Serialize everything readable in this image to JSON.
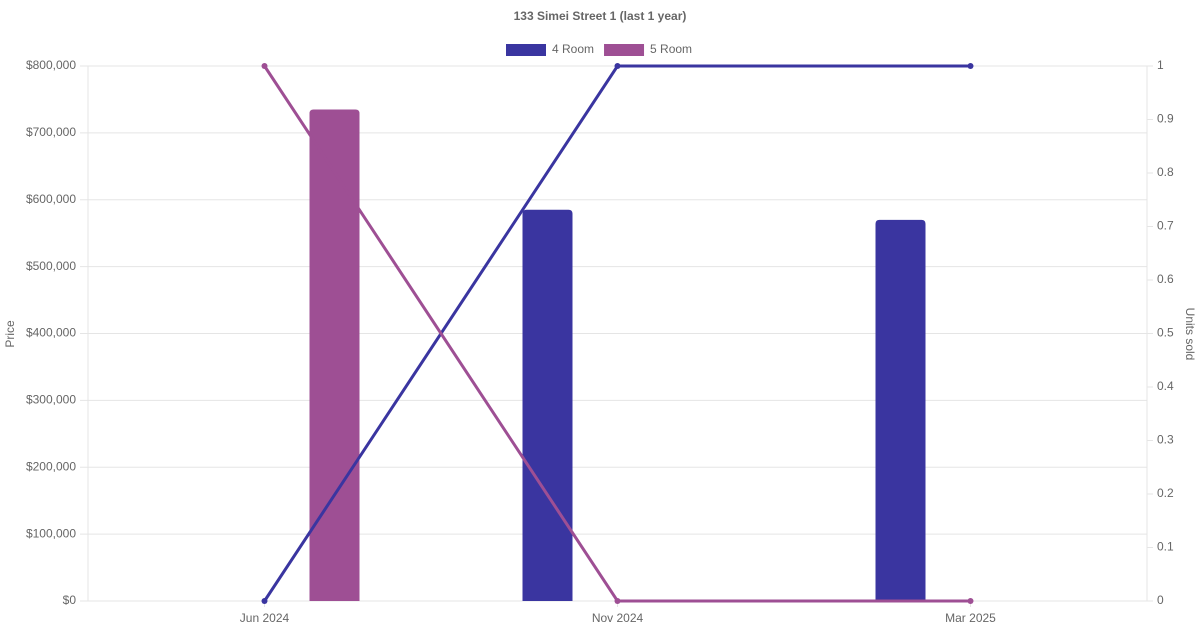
{
  "chart_data": {
    "type": "bar-line",
    "title": "133 Simei Street 1 (last 1 year)",
    "y_label": "Price",
    "y2_label": "Units sold",
    "categories": [
      "Jun 2024",
      "Nov 2024",
      "Mar 2025"
    ],
    "series": [
      {
        "name": "4 Room",
        "color": "#3a35a0",
        "values": [
          null,
          585000,
          570000
        ],
        "units_sold": [
          0,
          1,
          1
        ]
      },
      {
        "name": "5 Room",
        "color": "#9e4f94",
        "values": [
          735000,
          null,
          null
        ],
        "units_sold": [
          1,
          0,
          0
        ]
      }
    ],
    "ylim": [
      0,
      800000
    ],
    "yticks": [
      {
        "value": 0,
        "label": "$0"
      },
      {
        "value": 100000,
        "label": "$100,000"
      },
      {
        "value": 200000,
        "label": "$200,000"
      },
      {
        "value": 300000,
        "label": "$300,000"
      },
      {
        "value": 400000,
        "label": "$400,000"
      },
      {
        "value": 500000,
        "label": "$500,000"
      },
      {
        "value": 600000,
        "label": "$600,000"
      },
      {
        "value": 700000,
        "label": "$700,000"
      },
      {
        "value": 800000,
        "label": "$800,000"
      }
    ],
    "y2lim": [
      0,
      1
    ],
    "y2ticks": [
      0,
      0.1,
      0.2,
      0.3,
      0.4,
      0.5,
      0.6,
      0.7,
      0.8,
      0.9,
      1
    ],
    "grid": true,
    "legend": "top"
  }
}
